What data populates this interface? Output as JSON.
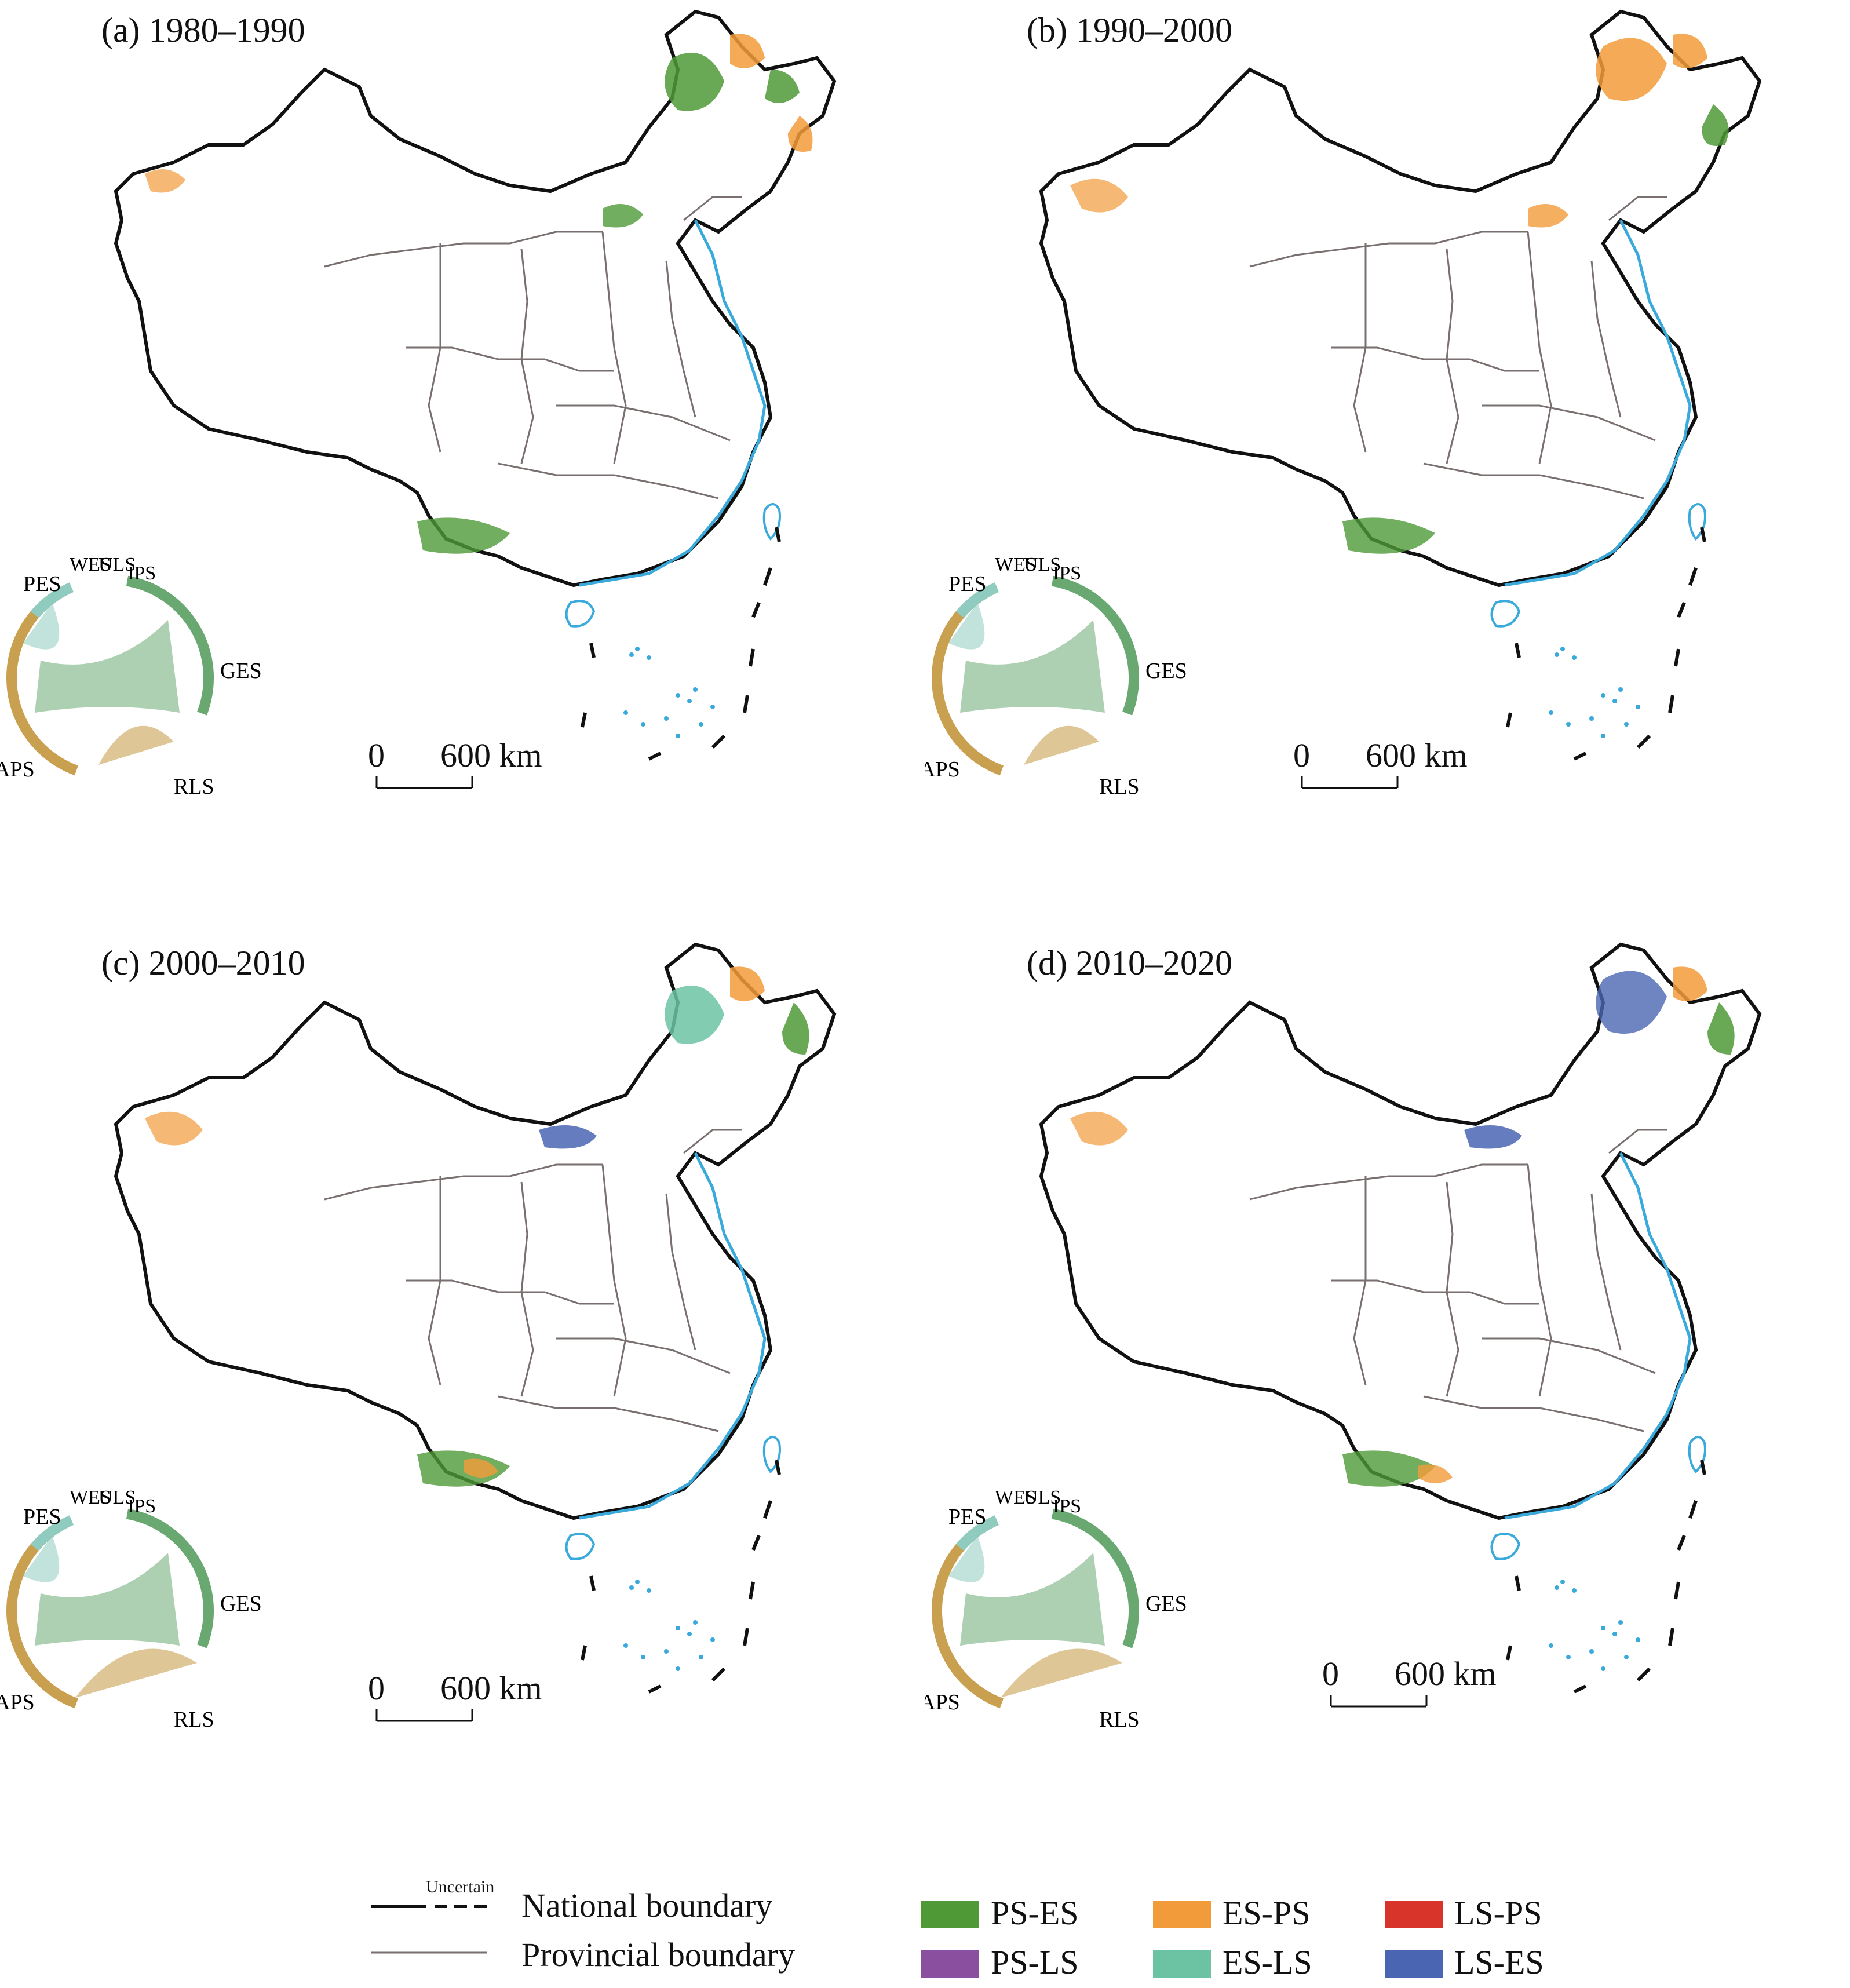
{
  "panels": [
    {
      "title": "(a) 1980–1990"
    },
    {
      "title": "(b) 1990–2000"
    },
    {
      "title": "(c) 2000–2010"
    },
    {
      "title": "(d) 2010–2020"
    }
  ],
  "chord_labels": {
    "pes": "PES",
    "wes": "WES",
    "uls": "ULS",
    "ips": "IPS",
    "ges": "GES",
    "aps": "APS",
    "rls": "RLS"
  },
  "scale_bar": {
    "zero": "0",
    "distance": "600 km"
  },
  "legend": {
    "uncertain": "Uncertain",
    "national_boundary": "National boundary",
    "provincial_boundary": "Provincial boundary",
    "classes": [
      {
        "label": "PS-ES",
        "color": "#4f9a37"
      },
      {
        "label": "ES-PS",
        "color": "#f29b3a"
      },
      {
        "label": "LS-PS",
        "color": "#d8342a"
      },
      {
        "label": "PS-LS",
        "color": "#8a4f9e"
      },
      {
        "label": "ES-LS",
        "color": "#6cc3a4"
      },
      {
        "label": "LS-ES",
        "color": "#4a66b3"
      }
    ]
  },
  "colors": {
    "coast": "#3aa9dc",
    "national": "#111111",
    "provincial": "#7a6f6f",
    "ges": "#6aa872",
    "aps": "#c8a050",
    "pes": "#8fcbbf",
    "rls": "#9b6aa8"
  }
}
